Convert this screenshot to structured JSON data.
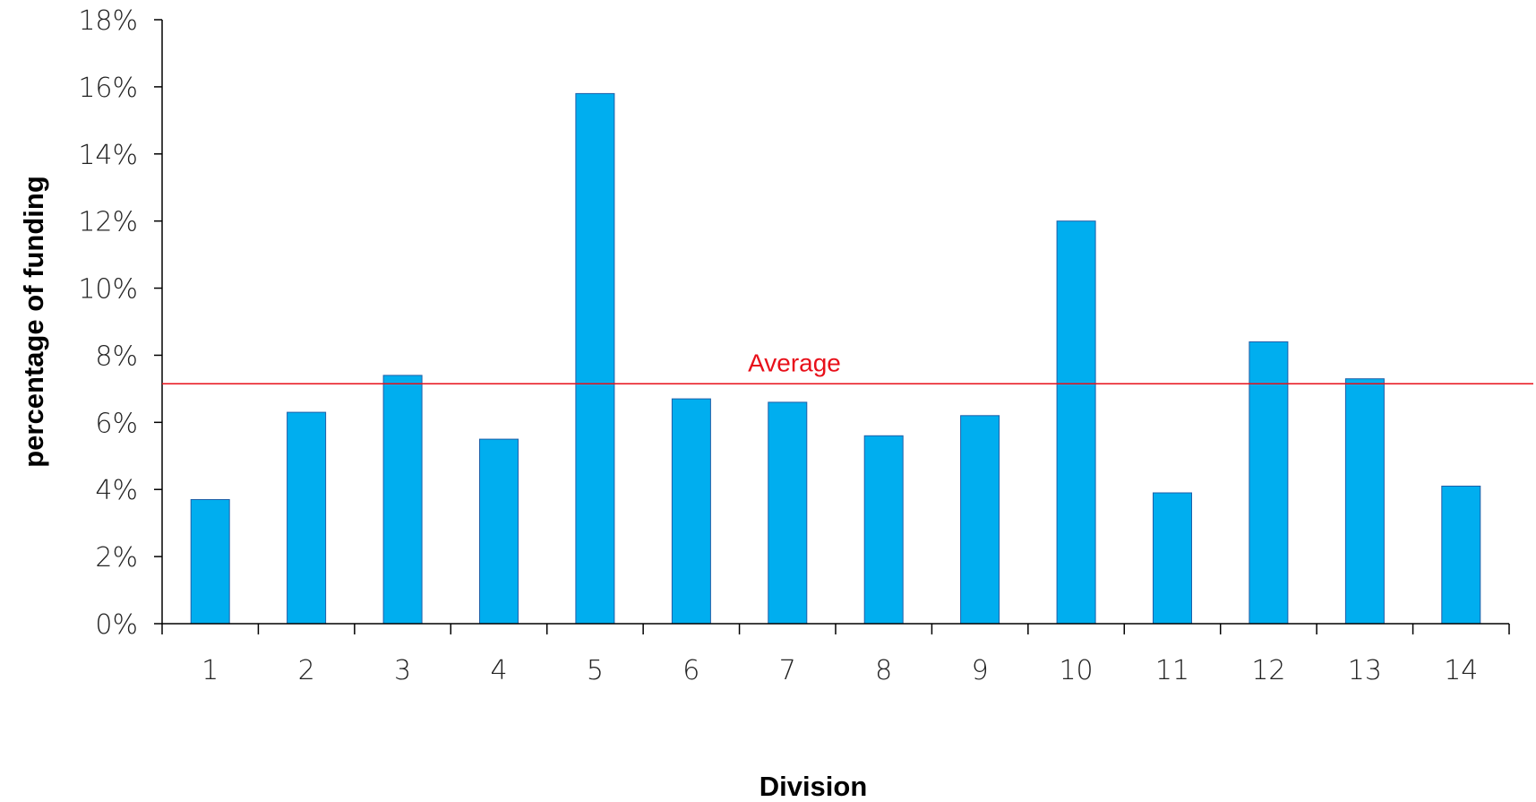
{
  "chart_data": {
    "type": "bar",
    "categories": [
      "1",
      "2",
      "3",
      "4",
      "5",
      "6",
      "7",
      "8",
      "9",
      "10",
      "11",
      "12",
      "13",
      "14"
    ],
    "values": [
      3.7,
      6.3,
      7.4,
      5.5,
      15.8,
      6.7,
      6.6,
      5.6,
      6.2,
      12.0,
      3.9,
      8.4,
      7.3,
      4.1
    ],
    "xlabel": "Division",
    "ylabel": "percentage of funding",
    "ylim": [
      0,
      18
    ],
    "yticks": [
      "0%",
      "2%",
      "4%",
      "6%",
      "8%",
      "10%",
      "12%",
      "14%",
      "16%",
      "18%"
    ],
    "grid": false,
    "bar_color": "#00AEEF",
    "average": {
      "label": "Average",
      "value": 7.15,
      "color": "#E8101A"
    }
  }
}
